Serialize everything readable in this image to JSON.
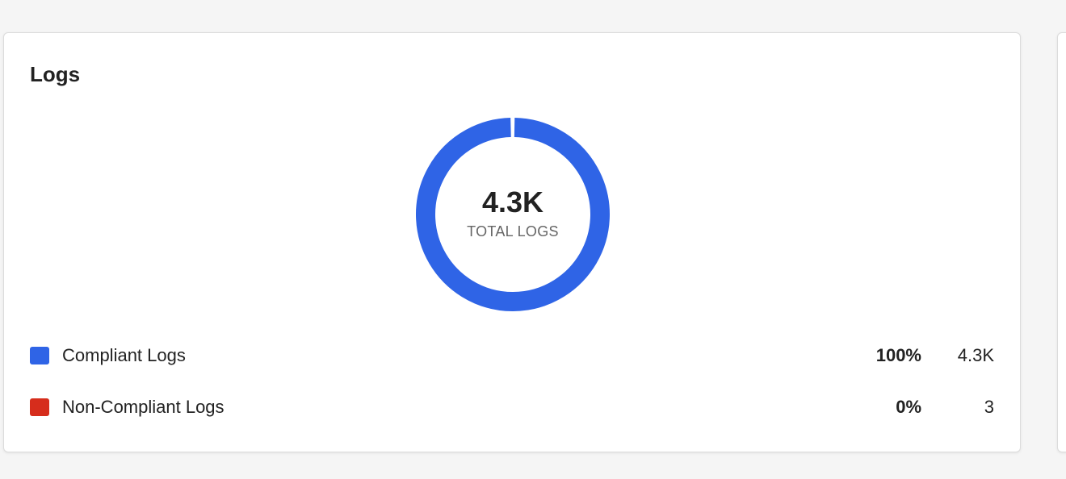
{
  "card": {
    "title": "Logs"
  },
  "colors": {
    "compliant": "#2f64e6",
    "non_compliant": "#d62d1c"
  },
  "chart_data": {
    "type": "pie",
    "center_value": "4.3K",
    "center_label": "TOTAL LOGS",
    "slices": [
      {
        "name": "Compliant Logs",
        "percent_label": "100%",
        "count_label": "4.3K",
        "value": 4300,
        "color": "#2f64e6"
      },
      {
        "name": "Non-Compliant Logs",
        "percent_label": "0%",
        "count_label": "3",
        "value": 3,
        "color": "#d62d1c"
      }
    ]
  }
}
